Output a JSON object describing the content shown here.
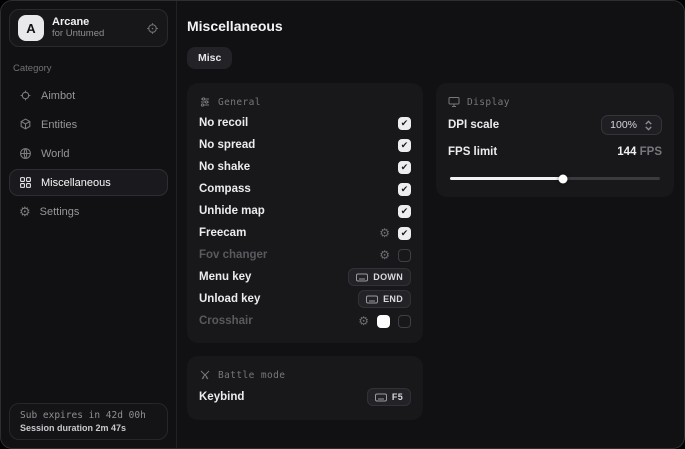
{
  "app": {
    "title": "Arcane",
    "subtitle": "for Untumed",
    "avatar_letter": "A"
  },
  "sidebar": {
    "category_label": "Category",
    "items": [
      {
        "label": "Aimbot",
        "icon": "crosshair-icon",
        "selected": false
      },
      {
        "label": "Entities",
        "icon": "cube-icon",
        "selected": false
      },
      {
        "label": "World",
        "icon": "globe-icon",
        "selected": false
      },
      {
        "label": "Miscellaneous",
        "icon": "grid-icon",
        "selected": true
      },
      {
        "label": "Settings",
        "icon": "gear-icon",
        "selected": false
      }
    ],
    "footer": {
      "expiry": "Sub expires in 42d 00h",
      "session": "Session duration 2m 47s"
    }
  },
  "main": {
    "title": "Miscellaneous",
    "tabs": [
      {
        "label": "Misc",
        "active": true
      }
    ],
    "panels": {
      "general": {
        "title": "General",
        "icon": "sliders-icon",
        "rows": [
          {
            "label": "No recoil",
            "checked": true
          },
          {
            "label": "No spread",
            "checked": true
          },
          {
            "label": "No shake",
            "checked": true
          },
          {
            "label": "Compass",
            "checked": true
          },
          {
            "label": "Unhide map",
            "checked": true
          },
          {
            "label": "Freecam",
            "checked": true,
            "has_settings": true
          },
          {
            "label": "Fov changer",
            "checked": false,
            "has_settings": true,
            "disabled": true
          },
          {
            "label": "Menu key",
            "key": "DOWN"
          },
          {
            "label": "Unload key",
            "key": "END"
          },
          {
            "label": "Crosshair",
            "checked": false,
            "has_settings": true,
            "disabled": true,
            "color": "#ffffff"
          }
        ]
      },
      "battle": {
        "title": "Battle mode",
        "icon": "swords-icon",
        "rows": [
          {
            "label": "Keybind",
            "key": "F5"
          }
        ]
      },
      "display": {
        "title": "Display",
        "icon": "monitor-icon",
        "dpi": {
          "label": "DPI scale",
          "value": "100%"
        },
        "fps": {
          "label": "FPS limit",
          "value": "144",
          "unit": "FPS",
          "slider_percent": 54
        }
      }
    }
  },
  "colors": {
    "accent": "#ffffff",
    "panel": "#18181b",
    "checkbox_on": "#ededef",
    "crosshair_swatch": "#ffffff"
  }
}
